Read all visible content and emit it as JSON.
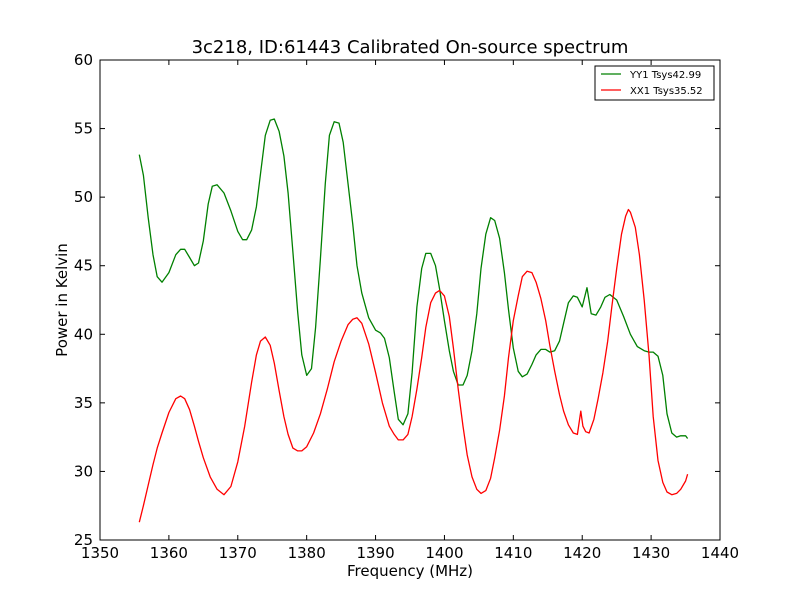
{
  "chart_data": {
    "type": "line",
    "title": "3c218, ID:61443 Calibrated On-source spectrum",
    "xlabel": "Frequency (MHz)",
    "ylabel": "Power in Kelvin",
    "xlim": [
      1350,
      1440
    ],
    "ylim": [
      25,
      60
    ],
    "xticks": [
      1350,
      1360,
      1370,
      1380,
      1390,
      1400,
      1410,
      1420,
      1430,
      1440
    ],
    "yticks": [
      25,
      30,
      35,
      40,
      45,
      50,
      55,
      60
    ],
    "grid": false,
    "legend_position": "top-right",
    "series": [
      {
        "name": "YY1 Tsys42.99",
        "color": "#008000",
        "x": [
          1355.7,
          1356.3,
          1357.0,
          1357.7,
          1358.3,
          1359.0,
          1360.0,
          1361.0,
          1361.7,
          1362.3,
          1363.0,
          1363.7,
          1364.3,
          1365.0,
          1365.7,
          1366.3,
          1367.0,
          1368.0,
          1369.0,
          1370.0,
          1370.7,
          1371.3,
          1372.0,
          1372.7,
          1373.3,
          1374.0,
          1374.7,
          1375.3,
          1376.0,
          1376.7,
          1377.3,
          1378.0,
          1378.7,
          1379.3,
          1380.0,
          1380.7,
          1381.3,
          1382.0,
          1382.7,
          1383.3,
          1384.0,
          1384.7,
          1385.3,
          1386.0,
          1386.7,
          1387.3,
          1388.0,
          1389.0,
          1390.0,
          1390.7,
          1391.3,
          1392.0,
          1392.7,
          1393.3,
          1394.0,
          1394.7,
          1395.3,
          1396.0,
          1396.7,
          1397.3,
          1398.0,
          1398.7,
          1399.3,
          1400.0,
          1400.7,
          1401.3,
          1402.0,
          1402.7,
          1403.3,
          1404.0,
          1404.7,
          1405.3,
          1406.0,
          1406.7,
          1407.3,
          1408.0,
          1408.7,
          1409.3,
          1410.0,
          1410.7,
          1411.3,
          1412.0,
          1412.7,
          1413.3,
          1414.0,
          1414.7,
          1415.3,
          1416.0,
          1416.7,
          1417.3,
          1418.0,
          1418.7,
          1419.3,
          1420.0,
          1420.7,
          1421.3,
          1422.0,
          1422.7,
          1423.3,
          1424.0,
          1425.0,
          1426.0,
          1427.0,
          1428.0,
          1429.0,
          1429.7,
          1430.3,
          1431.0,
          1431.7,
          1432.3,
          1433.0,
          1433.7,
          1434.3,
          1435.0,
          1435.3
        ],
        "y": [
          53.1,
          51.6,
          48.5,
          45.8,
          44.2,
          43.8,
          44.5,
          45.8,
          46.2,
          46.2,
          45.6,
          45.0,
          45.2,
          46.8,
          49.5,
          50.8,
          50.9,
          50.3,
          49.0,
          47.5,
          46.9,
          46.9,
          47.6,
          49.3,
          51.7,
          54.5,
          55.6,
          55.7,
          54.8,
          53.0,
          50.3,
          46.0,
          41.6,
          38.5,
          37.0,
          37.5,
          40.5,
          45.5,
          51.0,
          54.5,
          55.5,
          55.4,
          54.0,
          51.0,
          48.0,
          45.0,
          43.0,
          41.2,
          40.3,
          40.1,
          39.7,
          38.3,
          35.8,
          33.8,
          33.4,
          34.2,
          37.2,
          42.0,
          44.8,
          45.9,
          45.9,
          45.0,
          43.3,
          41.0,
          38.8,
          37.3,
          36.3,
          36.3,
          37.0,
          38.8,
          41.5,
          44.8,
          47.3,
          48.5,
          48.3,
          47.0,
          44.5,
          41.8,
          39.0,
          37.3,
          36.9,
          37.1,
          37.8,
          38.5,
          38.9,
          38.9,
          38.7,
          38.8,
          39.5,
          40.8,
          42.3,
          42.8,
          42.7,
          42.0,
          43.4,
          41.5,
          41.4,
          42.0,
          42.7,
          42.9,
          42.5,
          41.3,
          40.0,
          39.1,
          38.8,
          38.7,
          38.7,
          38.4,
          37.0,
          34.2,
          32.8,
          32.5,
          32.6,
          32.6,
          32.4
        ]
      },
      {
        "name": "XX1 Tsys35.52",
        "color": "#ff0000",
        "x": [
          1355.7,
          1356.3,
          1357.0,
          1357.7,
          1358.3,
          1359.0,
          1360.0,
          1361.0,
          1361.7,
          1362.3,
          1363.0,
          1363.7,
          1364.3,
          1365.0,
          1366.0,
          1367.0,
          1368.0,
          1369.0,
          1370.0,
          1371.0,
          1372.0,
          1372.7,
          1373.3,
          1374.0,
          1374.7,
          1375.3,
          1376.0,
          1376.7,
          1377.3,
          1378.0,
          1378.7,
          1379.3,
          1380.0,
          1381.0,
          1382.0,
          1383.0,
          1384.0,
          1385.0,
          1386.0,
          1386.7,
          1387.3,
          1388.0,
          1389.0,
          1390.0,
          1391.0,
          1392.0,
          1392.7,
          1393.3,
          1394.0,
          1394.7,
          1395.3,
          1396.0,
          1396.7,
          1397.3,
          1398.0,
          1398.7,
          1399.3,
          1400.0,
          1400.7,
          1401.3,
          1402.0,
          1402.7,
          1403.3,
          1404.0,
          1404.7,
          1405.3,
          1406.0,
          1406.7,
          1407.3,
          1408.0,
          1408.7,
          1409.3,
          1410.0,
          1410.7,
          1411.3,
          1412.0,
          1412.7,
          1413.3,
          1414.0,
          1414.7,
          1415.3,
          1416.0,
          1416.7,
          1417.3,
          1418.0,
          1418.7,
          1419.3,
          1419.8,
          1420.1,
          1420.5,
          1421.0,
          1421.7,
          1422.3,
          1423.0,
          1423.7,
          1424.3,
          1425.0,
          1425.7,
          1426.3,
          1426.7,
          1427.0,
          1427.7,
          1428.3,
          1429.0,
          1429.7,
          1430.3,
          1431.0,
          1431.7,
          1432.3,
          1433.0,
          1433.7,
          1434.3,
          1435.0,
          1435.3
        ],
        "y": [
          26.3,
          27.5,
          29.0,
          30.5,
          31.7,
          32.8,
          34.3,
          35.3,
          35.5,
          35.3,
          34.5,
          33.3,
          32.2,
          31.0,
          29.6,
          28.7,
          28.3,
          28.9,
          30.7,
          33.3,
          36.5,
          38.5,
          39.5,
          39.8,
          39.2,
          37.9,
          35.9,
          34.0,
          32.7,
          31.7,
          31.5,
          31.5,
          31.8,
          32.8,
          34.2,
          36.0,
          38.0,
          39.5,
          40.7,
          41.1,
          41.2,
          40.8,
          39.3,
          37.2,
          35.0,
          33.3,
          32.7,
          32.3,
          32.3,
          32.7,
          34.0,
          36.0,
          38.3,
          40.5,
          42.3,
          43.0,
          43.2,
          42.8,
          41.3,
          39.0,
          36.0,
          33.3,
          31.2,
          29.6,
          28.7,
          28.4,
          28.6,
          29.5,
          31.0,
          33.0,
          35.5,
          38.3,
          41.0,
          42.8,
          44.2,
          44.6,
          44.5,
          43.8,
          42.6,
          41.0,
          39.2,
          37.3,
          35.6,
          34.4,
          33.4,
          32.8,
          32.7,
          34.4,
          33.3,
          32.9,
          32.8,
          33.8,
          35.3,
          37.2,
          39.5,
          42.0,
          44.8,
          47.3,
          48.6,
          49.1,
          48.9,
          47.8,
          45.8,
          42.5,
          38.5,
          34.0,
          30.8,
          29.2,
          28.5,
          28.3,
          28.4,
          28.7,
          29.3,
          29.8
        ]
      }
    ]
  }
}
